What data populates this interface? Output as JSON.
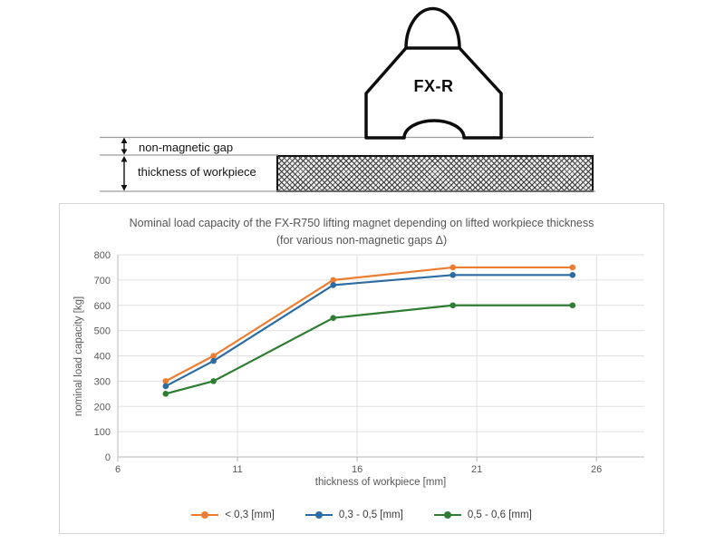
{
  "diagram": {
    "magnet_label": "FX-R",
    "gap_label": "non-magnetic gap",
    "thickness_label": "thickness of workpiece"
  },
  "chart_data": {
    "type": "line",
    "title_line1": "Nominal load capacity of the FX-R750 lifting magnet depending on lifted workpiece thickness",
    "title_line2": "(for various non-magnetic gaps Δ)",
    "xlabel": "thickness of workpiece [mm]",
    "ylabel": "nominal load capacity [kg]",
    "x": [
      8,
      10,
      15,
      20,
      25
    ],
    "xlim": [
      6,
      28
    ],
    "ylim": [
      0,
      800
    ],
    "x_ticks": [
      6,
      11,
      16,
      21,
      26
    ],
    "y_ticks": [
      0,
      100,
      200,
      300,
      400,
      500,
      600,
      700,
      800
    ],
    "grid": true,
    "legend_position": "bottom",
    "series": [
      {
        "name": "< 0,3 [mm]",
        "color": "#ED7D31",
        "values": [
          300,
          400,
          700,
          750,
          750
        ]
      },
      {
        "name": "0,3 - 0,5 [mm]",
        "color": "#2B6CA3",
        "values": [
          280,
          380,
          680,
          720,
          720
        ]
      },
      {
        "name": "0,5 - 0,6 [mm]",
        "color": "#2E7D32",
        "values": [
          250,
          300,
          550,
          600,
          600
        ]
      }
    ]
  }
}
